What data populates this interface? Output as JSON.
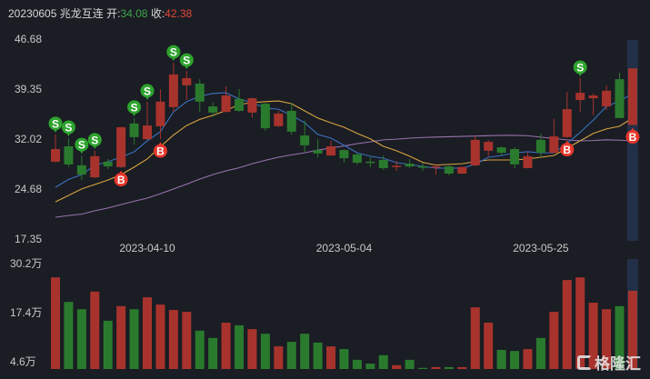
{
  "header": {
    "date": "20230605",
    "stock_name": "兆龙互连",
    "open_label": "开:",
    "open_value": "34.08",
    "close_label": "收:",
    "close_value": "42.38"
  },
  "watermark": "格隆汇",
  "colors": {
    "up": "#a8332d",
    "down": "#2a7a2e",
    "ma5": "#3a72c0",
    "ma10": "#d9a441",
    "ma30": "#9a72b0",
    "sell_marker": "#2ea32e",
    "buy_marker": "#e8372c",
    "highlight": "#223047",
    "background": "#1a1d23"
  },
  "chart_data": [
    {
      "type": "candlestick",
      "ylim": [
        17.35,
        46.68
      ],
      "yticks": [
        "46.68",
        "39.35",
        "32.02",
        "24.68",
        "17.35"
      ],
      "xtick_labels": [
        {
          "index": 7,
          "label": "2023-04-10"
        },
        {
          "index": 22,
          "label": "2023-05-04"
        },
        {
          "index": 37,
          "label": "2023-05-25"
        }
      ],
      "ohlc": [
        [
          28.69,
          32.7,
          28.6,
          30.55
        ],
        [
          30.95,
          32.15,
          27.9,
          28.29
        ],
        [
          28.16,
          29.6,
          26.0,
          26.8
        ],
        [
          26.4,
          30.3,
          26.3,
          29.5
        ],
        [
          28.7,
          29.1,
          27.6,
          28.0
        ],
        [
          27.9,
          33.8,
          27.8,
          33.75
        ],
        [
          34.3,
          35.1,
          31.2,
          32.3
        ],
        [
          32.0,
          37.5,
          31.9,
          34.0
        ],
        [
          33.9,
          39.3,
          32.0,
          37.5
        ],
        [
          36.7,
          43.2,
          36.0,
          41.5
        ],
        [
          39.9,
          42.0,
          37.75,
          40.95
        ],
        [
          40.15,
          40.8,
          36.0,
          37.5
        ],
        [
          36.8,
          37.4,
          35.2,
          35.9
        ],
        [
          36.0,
          39.75,
          35.9,
          38.4
        ],
        [
          37.9,
          39.35,
          36.0,
          36.15
        ],
        [
          35.9,
          38.1,
          35.2,
          38.0
        ],
        [
          37.2,
          37.3,
          33.2,
          33.6
        ],
        [
          33.9,
          36.15,
          33.8,
          35.75
        ],
        [
          36.15,
          37.35,
          32.7,
          33.1
        ],
        [
          32.55,
          34.7,
          30.15,
          31.1
        ],
        [
          30.4,
          32.0,
          29.35,
          29.9
        ],
        [
          29.6,
          31.75,
          29.6,
          30.95
        ],
        [
          30.4,
          30.5,
          28.55,
          29.2
        ],
        [
          29.75,
          29.9,
          28.3,
          28.55
        ],
        [
          28.7,
          29.35,
          27.9,
          28.55
        ],
        [
          28.95,
          29.6,
          27.5,
          27.75
        ],
        [
          28.0,
          28.8,
          27.35,
          28.1
        ],
        [
          28.4,
          29.1,
          27.75,
          28.0
        ],
        [
          28.0,
          28.55,
          27.35,
          27.9
        ],
        [
          27.9,
          28.4,
          26.8,
          28.0
        ],
        [
          28.0,
          28.1,
          26.7,
          26.95
        ],
        [
          26.95,
          28.0,
          26.9,
          27.9
        ],
        [
          28.15,
          32.55,
          28.0,
          31.9
        ],
        [
          30.3,
          31.9,
          29.5,
          31.6
        ],
        [
          30.8,
          30.9,
          29.6,
          30.0
        ],
        [
          30.55,
          30.8,
          27.75,
          28.3
        ],
        [
          27.75,
          30.0,
          27.7,
          29.5
        ],
        [
          31.9,
          32.8,
          29.35,
          30.0
        ],
        [
          30.0,
          34.95,
          29.9,
          32.4
        ],
        [
          32.3,
          38.95,
          32.2,
          36.4
        ],
        [
          37.75,
          40.95,
          36.0,
          38.8
        ],
        [
          38.0,
          38.7,
          35.5,
          38.4
        ],
        [
          36.8,
          39.9,
          36.3,
          39.1
        ],
        [
          40.8,
          41.75,
          35.1,
          35.1
        ],
        [
          34.08,
          42.38,
          34.08,
          42.38
        ]
      ],
      "ma5": [
        24.95,
        26.1,
        26.8,
        28.15,
        28.7,
        29.35,
        30.15,
        31.75,
        33.1,
        36.0,
        37.5,
        38.3,
        38.7,
        38.8,
        37.9,
        37.35,
        36.55,
        36.4,
        35.5,
        34.4,
        32.7,
        32.15,
        31.1,
        30.0,
        29.5,
        29.2,
        28.55,
        28.3,
        28.0,
        27.75,
        27.75,
        27.75,
        28.3,
        29.35,
        29.6,
        30.0,
        30.15,
        30.0,
        30.0,
        31.35,
        33.0,
        34.8,
        36.8,
        37.6,
        38.7
      ],
      "ma10": [
        22.8,
        23.75,
        24.7,
        25.35,
        26.0,
        26.8,
        27.9,
        29.1,
        30.9,
        32.6,
        34.0,
        34.9,
        35.5,
        36.2,
        37.1,
        37.35,
        37.5,
        37.6,
        37.2,
        36.15,
        35.1,
        34.4,
        33.75,
        32.85,
        32.05,
        30.95,
        30.3,
        29.5,
        28.6,
        28.2,
        28.3,
        28.4,
        28.7,
        28.95,
        28.95,
        28.95,
        29.1,
        29.35,
        29.6,
        30.7,
        31.75,
        32.85,
        33.5,
        33.9,
        35.1
      ],
      "ma30": [
        20.55,
        20.8,
        21.0,
        21.5,
        21.9,
        22.4,
        22.9,
        23.35,
        24.0,
        24.7,
        25.4,
        26.15,
        26.8,
        27.35,
        27.8,
        28.4,
        28.9,
        29.35,
        29.7,
        30.0,
        30.4,
        30.7,
        31.0,
        31.35,
        31.6,
        31.9,
        32.0,
        32.15,
        32.25,
        32.3,
        32.35,
        32.4,
        32.45,
        32.5,
        32.55,
        32.55,
        32.5,
        32.3,
        32.1,
        31.9,
        31.75,
        31.8,
        31.9,
        31.85,
        31.75
      ],
      "sell_signals": [
        0,
        1,
        2,
        3,
        6,
        7,
        9,
        10,
        40
      ],
      "buy_signals": [
        5,
        8,
        39,
        44
      ],
      "sell_marker_label": "S",
      "buy_marker_label": "B",
      "highlighted_index": 44
    },
    {
      "type": "bar",
      "unit": "万",
      "yticks": [
        "30.2万",
        "17.4万",
        "4.6万"
      ],
      "ytick_values": [
        30.2,
        17.4,
        4.6
      ],
      "values": [
        26.6,
        20.2,
        18.3,
        22.9,
        15.3,
        19.1,
        18.3,
        21.4,
        19.5,
        18.1,
        17.6,
        12.7,
        10.8,
        14.8,
        14.1,
        13.1,
        11.9,
        8.6,
        9.8,
        11.9,
        9.6,
        8.6,
        7.9,
        5.1,
        4.1,
        6.3,
        3.7,
        5.1,
        3.0,
        3.2,
        3.2,
        3.2,
        18.8,
        14.8,
        7.7,
        7.4,
        7.9,
        10.8,
        17.6,
        25.9,
        26.6,
        20.0,
        18.3,
        19.1,
        23.1
      ]
    }
  ]
}
